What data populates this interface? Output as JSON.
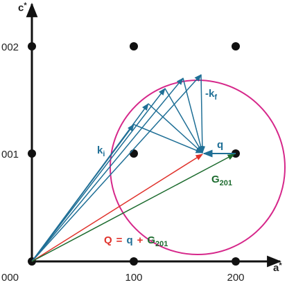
{
  "axes": {
    "vertical": {
      "main": "c",
      "sup": "*"
    },
    "horizontal": {
      "main": "a",
      "sup": "*"
    }
  },
  "ticks": {
    "origin": "000",
    "a1": "100",
    "a2": "200",
    "c1": "001",
    "c2": "002"
  },
  "labels": {
    "ki": {
      "main": "k",
      "sub": "i"
    },
    "kf": {
      "main": "-k",
      "sub": "f"
    },
    "q": "q",
    "G": {
      "main": "G",
      "sub": "201"
    },
    "equation": {
      "Q": "Q",
      "equals": "=",
      "q": "q",
      "plus": "+",
      "G": "G",
      "G_sub": "201"
    }
  }
}
